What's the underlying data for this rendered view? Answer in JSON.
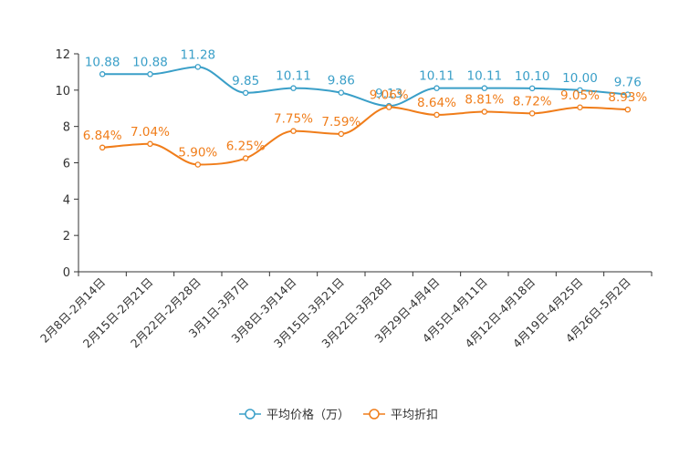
{
  "chart_data": {
    "type": "line",
    "categories": [
      "2月8日-2月14日",
      "2月15日-2月21日",
      "2月22日-2月28日",
      "3月1日-3月7日",
      "3月8日-3月14日",
      "3月15日-3月21日",
      "3月22日-3月28日",
      "3月29日-4月4日",
      "4月5日-4月11日",
      "4月12日-4月18日",
      "4月19日-4月25日",
      "4月26日-5月2日"
    ],
    "ylim": [
      0,
      12
    ],
    "yticks": [
      0,
      2,
      4,
      6,
      8,
      10,
      12
    ],
    "series": [
      {
        "name": "平均价格（万）",
        "color": "#3a9fc8",
        "values": [
          10.88,
          10.88,
          11.28,
          9.85,
          10.11,
          9.86,
          9.13,
          10.11,
          10.11,
          10.1,
          10.0,
          9.76
        ],
        "labels": [
          "10.88",
          "10.88",
          "11.28",
          "9.85",
          "10.11",
          "9.86",
          "9.13",
          "10.11",
          "10.11",
          "10.10",
          "10.00",
          "9.76"
        ]
      },
      {
        "name": "平均折扣",
        "color": "#f07d1a",
        "values": [
          6.84,
          7.04,
          5.9,
          6.25,
          7.75,
          7.59,
          9.06,
          8.64,
          8.81,
          8.72,
          9.05,
          8.93
        ],
        "labels": [
          "6.84%",
          "7.04%",
          "5.90%",
          "6.25%",
          "7.75%",
          "7.59%",
          "9.06%",
          "8.64%",
          "8.81%",
          "8.72%",
          "9.05%",
          "8.93%"
        ]
      }
    ],
    "legend_position": "bottom"
  }
}
